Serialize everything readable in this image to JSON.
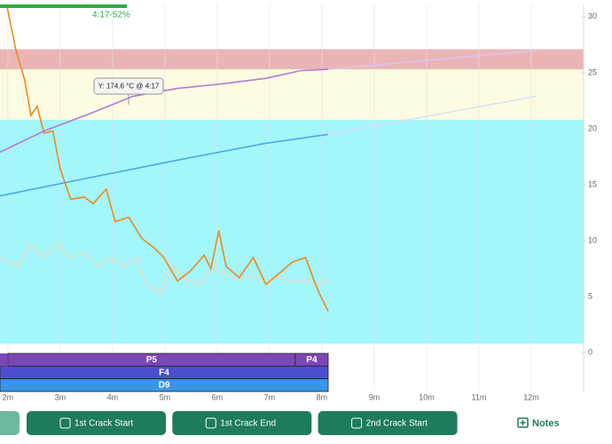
{
  "indicator": {
    "label": "4:17-52%"
  },
  "chart_data": {
    "type": "line",
    "xlim": [
      1.85,
      13.0
    ],
    "ylim": [
      -3.4,
      31.1
    ],
    "xticks": [
      {
        "value": 2,
        "label": "2m"
      },
      {
        "value": 3,
        "label": "3m"
      },
      {
        "value": 4,
        "label": "4m"
      },
      {
        "value": 5,
        "label": "5m"
      },
      {
        "value": 6,
        "label": "6m"
      },
      {
        "value": 7,
        "label": "7m"
      },
      {
        "value": 8,
        "label": "8m"
      },
      {
        "value": 9,
        "label": "9m"
      },
      {
        "value": 10,
        "label": "10m"
      },
      {
        "value": 11,
        "label": "11m"
      },
      {
        "value": 12,
        "label": "12m"
      }
    ],
    "yticks": [
      0,
      5,
      10,
      15,
      20,
      25,
      30
    ],
    "grid": true,
    "bands": [
      {
        "from": 25.3,
        "to": 27.1,
        "color": "#ebb5b5"
      },
      {
        "from": 20.8,
        "to": 25.3,
        "color": "#fdfbe1"
      },
      {
        "from": 0.8,
        "to": 20.8,
        "color": "#a3f6fa"
      }
    ],
    "series": [
      {
        "color": "#e9dcc8",
        "x": [
          1.85,
          2.19,
          2.44,
          2.69,
          2.95,
          3.2,
          3.46,
          3.71,
          3.97,
          4.22,
          4.47,
          4.64,
          4.9,
          5.15,
          5.41,
          5.66,
          5.92,
          6.17,
          6.42,
          6.68,
          6.93,
          7.19,
          7.44,
          7.69,
          7.95,
          8.12
        ],
        "values": [
          8.5,
          7.7,
          9.7,
          8.5,
          9.7,
          8.5,
          8.9,
          7.7,
          8.5,
          7.7,
          8.5,
          6.1,
          5.3,
          7.7,
          6.5,
          6.1,
          7.7,
          6.9,
          6.5,
          6.9,
          6.3,
          6.9,
          6.3,
          6.5,
          6.1,
          6.5
        ]
      },
      {
        "color": "#f0891c",
        "x": [
          1.98,
          2.15,
          2.32,
          2.44,
          2.56,
          2.69,
          2.86,
          3.0,
          3.2,
          3.46,
          3.63,
          3.88,
          4.05,
          4.31,
          4.56,
          4.81,
          4.98,
          5.24,
          5.49,
          5.75,
          5.88,
          6.03,
          6.17,
          6.42,
          6.69,
          6.93,
          7.19,
          7.44,
          7.69,
          7.86,
          7.95,
          8.12
        ],
        "values": [
          31.0,
          27.1,
          24.4,
          21.2,
          22.0,
          19.6,
          19.8,
          16.4,
          13.7,
          13.9,
          13.3,
          14.6,
          11.7,
          12.1,
          10.2,
          9.3,
          8.5,
          6.4,
          7.3,
          8.7,
          7.5,
          10.9,
          7.7,
          6.7,
          8.5,
          6.1,
          7.1,
          8.1,
          8.5,
          6.3,
          5.3,
          3.7
        ]
      },
      {
        "color": "#b27ad8",
        "x": [
          1.85,
          2.69,
          3.54,
          4.39,
          5.24,
          6.08,
          6.93,
          7.61,
          8.12
        ],
        "values": [
          17.9,
          19.8,
          21.3,
          22.9,
          23.6,
          24.0,
          24.5,
          25.2,
          25.3
        ]
      },
      {
        "color": "#dcc3ef",
        "x": [
          8.12,
          12.1
        ],
        "values": [
          25.3,
          27.0
        ]
      },
      {
        "color": "#4ea6e6",
        "x": [
          1.85,
          3.54,
          5.24,
          6.93,
          8.12
        ],
        "values": [
          14.0,
          15.6,
          17.2,
          18.7,
          19.5
        ]
      },
      {
        "color": "#d6e3f3",
        "x": [
          8.12,
          12.1
        ],
        "values": [
          19.5,
          22.9
        ]
      }
    ],
    "tooltip": "Y: 174.6 °C @ 4:17"
  },
  "phases": [
    {
      "row": 0,
      "label": "P5",
      "start": 2.0,
      "end": 7.49,
      "color": "#7b47b3"
    },
    {
      "row": 0,
      "label": "P4",
      "start": 7.49,
      "end": 8.12,
      "color": "#7b47b3"
    },
    {
      "row": 1,
      "label": "F4",
      "start": 1.85,
      "end": 8.12,
      "color": "#4a4fd0"
    },
    {
      "row": 2,
      "label": "D9",
      "start": 1.85,
      "end": 8.12,
      "color": "#3a95e6"
    }
  ],
  "buttons": [
    "1st Crack Start",
    "1st Crack End",
    "2nd Crack Start"
  ],
  "notes": "Notes"
}
